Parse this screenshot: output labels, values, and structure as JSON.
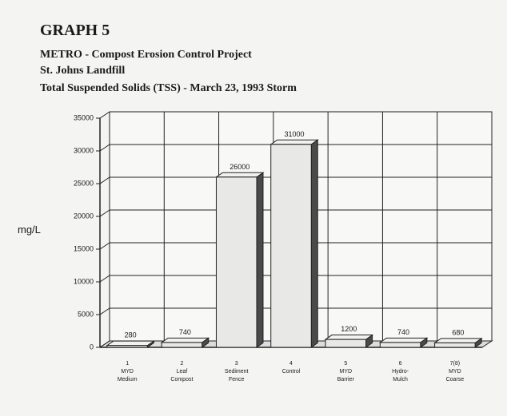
{
  "chart_data": {
    "type": "bar3d",
    "title": "GRAPH 5",
    "subtitle": [
      "METRO - Compost Erosion Control Project",
      "St. Johns Landfill",
      "Total Suspended Solids (TSS) - March 23, 1993 Storm"
    ],
    "y_label": "mg/L",
    "categories": [
      [
        "1",
        "MYD",
        "Medium"
      ],
      [
        "2",
        "Leaf",
        "Compost"
      ],
      [
        "3",
        "Sediment",
        "Fence"
      ],
      [
        "4",
        "Control"
      ],
      [
        "5",
        "MYD",
        "Barrier"
      ],
      [
        "6",
        "Hydro-",
        "Mulch"
      ],
      [
        "7(8)",
        "MYD",
        "Coarse"
      ]
    ],
    "values": [
      280,
      740,
      26000,
      31000,
      1200,
      740,
      680
    ],
    "ylim": [
      0,
      35000
    ],
    "yticks": [
      0,
      5000,
      10000,
      15000,
      20000,
      25000,
      30000,
      35000
    ],
    "color": "#e8e8e6",
    "side_color": "#4a4a4a",
    "grid": true
  }
}
